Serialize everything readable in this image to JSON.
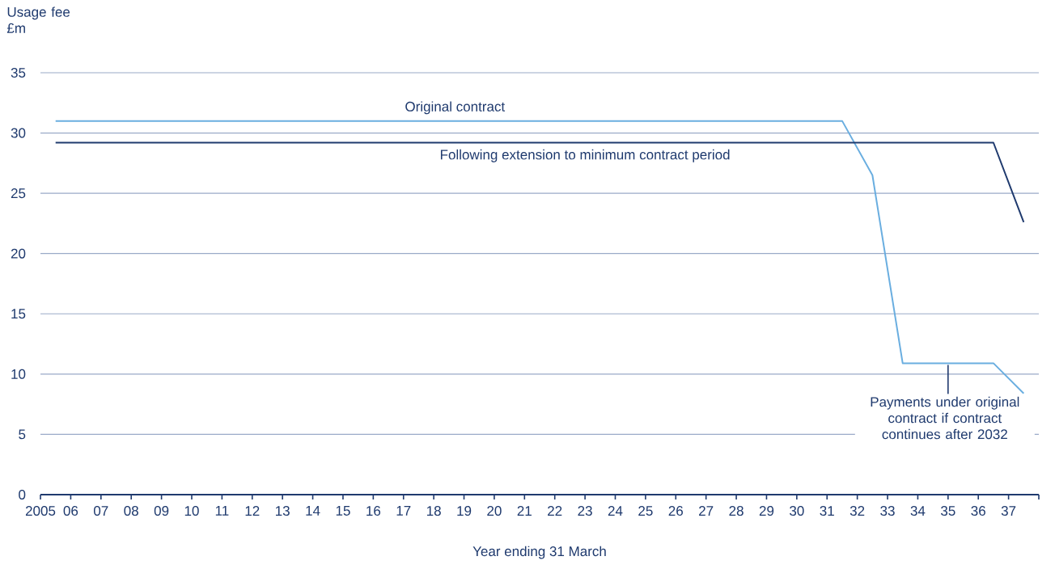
{
  "chart_data": {
    "type": "line",
    "ylabel": "Usage fee £m",
    "xlabel": "Year ending 31 March",
    "xlim": [
      2005,
      2038
    ],
    "xticks": [
      2005,
      {
        "value": 2006,
        "label": "06"
      },
      {
        "value": 2007,
        "label": "07"
      },
      {
        "value": 2008,
        "label": "08"
      },
      {
        "value": 2009,
        "label": "09"
      },
      {
        "value": 2010,
        "label": "10"
      },
      {
        "value": 2011,
        "label": "11"
      },
      {
        "value": 2012,
        "label": "12"
      },
      {
        "value": 2013,
        "label": "13"
      },
      {
        "value": 2014,
        "label": "14"
      },
      {
        "value": 2015,
        "label": "15"
      },
      {
        "value": 2016,
        "label": "16"
      },
      {
        "value": 2017,
        "label": "17"
      },
      {
        "value": 2018,
        "label": "18"
      },
      {
        "value": 2019,
        "label": "19"
      },
      {
        "value": 2020,
        "label": "20"
      },
      {
        "value": 2021,
        "label": "21"
      },
      {
        "value": 2022,
        "label": "22"
      },
      {
        "value": 2023,
        "label": "23"
      },
      {
        "value": 2024,
        "label": "24"
      },
      {
        "value": 2025,
        "label": "25"
      },
      {
        "value": 2026,
        "label": "26"
      },
      {
        "value": 2027,
        "label": "27"
      },
      {
        "value": 2028,
        "label": "28"
      },
      {
        "value": 2029,
        "label": "29"
      },
      {
        "value": 2030,
        "label": "30"
      },
      {
        "value": 2031,
        "label": "31"
      },
      {
        "value": 2032,
        "label": "32"
      },
      {
        "value": 2033,
        "label": "33"
      },
      {
        "value": 2034,
        "label": "34"
      },
      {
        "value": 2035,
        "label": "35"
      },
      {
        "value": 2036,
        "label": "36"
      },
      {
        "value": 2037,
        "label": "37"
      },
      {
        "value": 2038,
        "label": null
      }
    ],
    "ylim": [
      0,
      35
    ],
    "yticks": [
      0,
      5,
      10,
      15,
      20,
      25,
      30,
      35
    ],
    "grid": "y",
    "series": [
      {
        "name": "Original contract",
        "color": "#6aaee0",
        "x": [
          2005.5,
          2031.5,
          2032.5,
          2033.5,
          2036.5,
          2037.5
        ],
        "values": [
          31.0,
          31.0,
          26.5,
          10.9,
          10.9,
          8.4
        ]
      },
      {
        "name": "Following extension to minimum contract period",
        "color": "#1f3a6e",
        "x": [
          2005.5,
          2036.5,
          2037.5
        ],
        "values": [
          29.2,
          29.2,
          22.6
        ]
      }
    ],
    "annotations": [
      {
        "text": "Payments under original contract if contract continues after 2032",
        "x": 2035,
        "y": 10.9
      }
    ]
  }
}
